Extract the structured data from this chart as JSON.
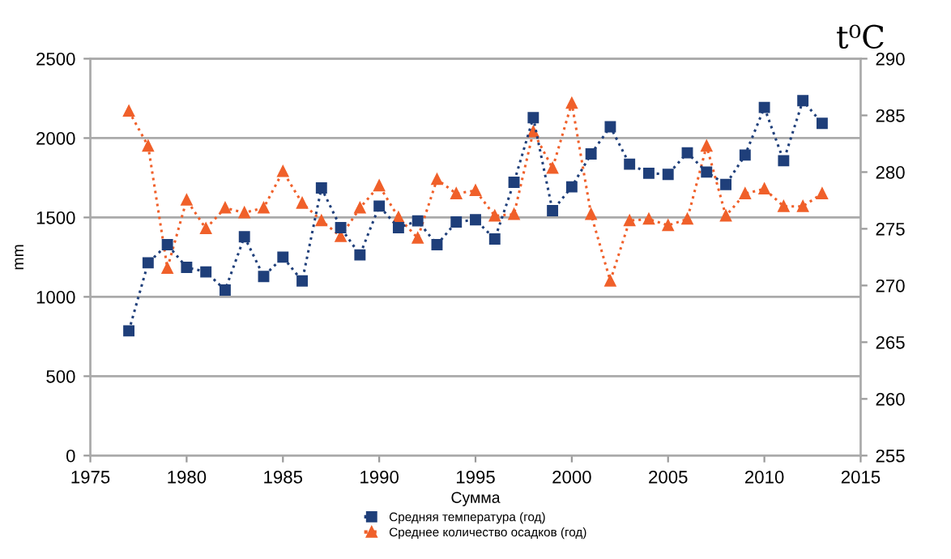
{
  "chart_data": {
    "type": "line",
    "xlabel": "Сумма",
    "ylabel": "mm",
    "y2label": "t⁰C",
    "x": [
      1977,
      1978,
      1979,
      1980,
      1981,
      1982,
      1983,
      1984,
      1985,
      1986,
      1987,
      1988,
      1989,
      1990,
      1991,
      1992,
      1993,
      1994,
      1995,
      1996,
      1997,
      1998,
      1999,
      2000,
      2001,
      2002,
      2003,
      2004,
      2005,
      2006,
      2007,
      2008,
      2009,
      2010,
      2011,
      2012,
      2013
    ],
    "series": [
      {
        "name": "Средняя температура (год)",
        "color": "#1f3f7a",
        "axis": "y2",
        "marker": "square",
        "values": [
          266.0,
          272.0,
          273.6,
          271.6,
          271.2,
          269.6,
          274.3,
          270.8,
          272.5,
          270.4,
          278.6,
          275.1,
          272.7,
          277.0,
          275.1,
          275.7,
          273.6,
          275.6,
          275.8,
          274.1,
          279.1,
          284.8,
          276.6,
          278.7,
          281.6,
          284.0,
          280.7,
          279.9,
          279.8,
          281.7,
          280.0,
          278.9,
          281.5,
          285.7,
          281.0,
          286.3,
          284.3
        ]
      },
      {
        "name": "Среднее количество осадков (год)",
        "color": "#f0602a",
        "axis": "y",
        "marker": "triangle",
        "values": [
          2170,
          1950,
          1180,
          1610,
          1430,
          1560,
          1530,
          1560,
          1790,
          1590,
          1480,
          1380,
          1560,
          1700,
          1500,
          1370,
          1740,
          1650,
          1670,
          1510,
          1520,
          2040,
          1810,
          2220,
          1520,
          1100,
          1480,
          1490,
          1450,
          1490,
          1950,
          1510,
          1650,
          1680,
          1570,
          1570,
          1650
        ]
      }
    ],
    "xlim": [
      1975,
      2015
    ],
    "xticks": [
      1975,
      1980,
      1985,
      1990,
      1995,
      2000,
      2005,
      2010,
      2015
    ],
    "ylim": [
      0,
      2500
    ],
    "yticks": [
      0,
      500,
      1000,
      1500,
      2000,
      2500
    ],
    "y2lim": [
      255,
      290
    ],
    "y2ticks": [
      255,
      260,
      265,
      270,
      275,
      280,
      285,
      290
    ],
    "grid": "y",
    "legend": "bottom",
    "line_style": "dotted"
  }
}
